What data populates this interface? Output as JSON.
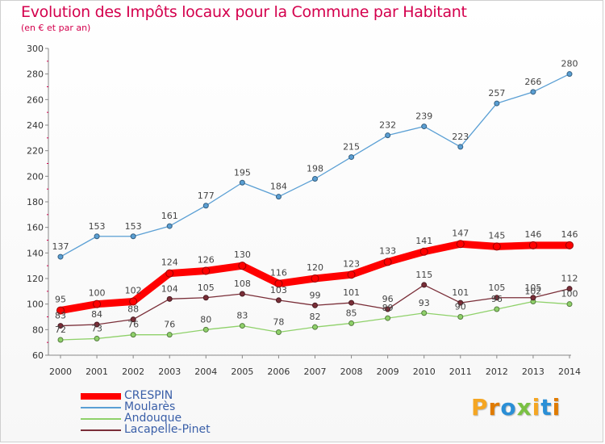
{
  "header": {
    "title": "Evolution des Impôts locaux pour la Commune par Habitant",
    "subtitle": "(en € et par an)"
  },
  "brand": {
    "letters": [
      "P",
      "r",
      "o",
      "x",
      "i",
      "t",
      "i"
    ],
    "colors": [
      "#f5a623",
      "#e07b00",
      "#2b8fd6",
      "#7ac143",
      "#f5a623",
      "#2b8fd6",
      "#e07b00"
    ]
  },
  "chart_data": {
    "type": "line",
    "title": "Evolution des Impôts locaux pour la Commune par Habitant",
    "subtitle": "(en € et par an)",
    "x": [
      "2000",
      "2001",
      "2002",
      "2003",
      "2004",
      "2005",
      "2006",
      "2007",
      "2008",
      "2009",
      "2010",
      "2011",
      "2012",
      "2013",
      "2014"
    ],
    "ylim": [
      60,
      300
    ],
    "yticks": [
      60,
      80,
      100,
      120,
      140,
      160,
      180,
      200,
      220,
      240,
      260,
      280,
      300
    ],
    "grid": false,
    "legend_position": "bottom-left",
    "series": [
      {
        "name": "CRESPIN",
        "color": "#ff0000",
        "values": [
          95,
          100,
          102,
          124,
          126,
          130,
          116,
          120,
          123,
          133,
          141,
          147,
          145,
          146,
          146
        ]
      },
      {
        "name": "Moularès",
        "color": "#5a9fd4",
        "values": [
          137,
          153,
          153,
          161,
          177,
          195,
          184,
          198,
          215,
          232,
          239,
          223,
          257,
          266,
          280
        ]
      },
      {
        "name": "Andouque",
        "color": "#8fd16a",
        "values": [
          72,
          73,
          76,
          76,
          80,
          83,
          78,
          82,
          85,
          89,
          93,
          90,
          96,
          102,
          100
        ]
      },
      {
        "name": "Lacapelle-Pinet",
        "color": "#7a2e38",
        "values": [
          83,
          84,
          88,
          104,
          105,
          108,
          103,
          99,
          101,
          96,
          115,
          101,
          105,
          105,
          112
        ]
      }
    ]
  }
}
